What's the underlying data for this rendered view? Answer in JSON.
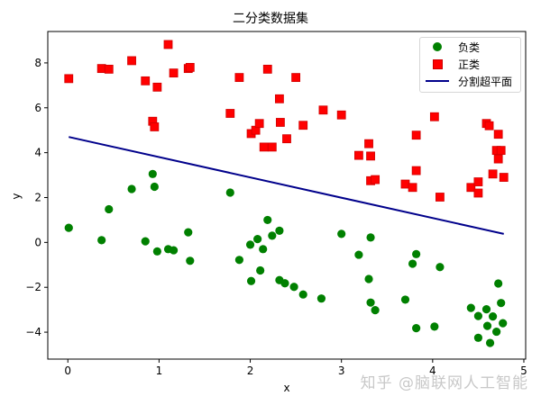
{
  "title": "二分类数据集",
  "watermark": "知乎 @脑联网人工智能",
  "legend": {
    "items": [
      {
        "label": "负类",
        "marker": "circle",
        "color": "#008000"
      },
      {
        "label": "正类",
        "marker": "square",
        "color": "#ff0000"
      },
      {
        "label": "分割超平面",
        "marker": "line",
        "color": "#00008b"
      }
    ]
  },
  "colors": {
    "negative": "#008000",
    "positive": "#ff0000",
    "hyperplane": "#00008b"
  },
  "chart_data": {
    "type": "scatter",
    "title": "二分类数据集",
    "xlabel": "x",
    "ylabel": "y",
    "xlim": [
      -0.22,
      5.02
    ],
    "ylim": [
      -5.2,
      9.4
    ],
    "xticks": [
      0,
      1,
      2,
      3,
      4,
      5
    ],
    "yticks": [
      -4,
      -2,
      0,
      2,
      4,
      6,
      8
    ],
    "grid": false,
    "legend_position": "upper right",
    "series": [
      {
        "name": "负类",
        "marker": "circle",
        "color": "#008000",
        "points": [
          [
            0.01,
            0.65
          ],
          [
            0.37,
            0.1
          ],
          [
            0.45,
            1.48
          ],
          [
            0.7,
            2.38
          ],
          [
            0.85,
            0.05
          ],
          [
            0.93,
            3.05
          ],
          [
            0.95,
            2.48
          ],
          [
            0.98,
            -0.4
          ],
          [
            1.1,
            -0.3
          ],
          [
            1.16,
            -0.35
          ],
          [
            1.32,
            0.45
          ],
          [
            1.34,
            -0.82
          ],
          [
            1.78,
            2.22
          ],
          [
            1.88,
            -0.78
          ],
          [
            2.0,
            -0.1
          ],
          [
            2.01,
            -1.72
          ],
          [
            2.08,
            0.15
          ],
          [
            2.11,
            -1.25
          ],
          [
            2.14,
            -0.3
          ],
          [
            2.19,
            1.0
          ],
          [
            2.24,
            0.3
          ],
          [
            2.32,
            0.52
          ],
          [
            2.32,
            -1.68
          ],
          [
            2.38,
            -1.82
          ],
          [
            2.48,
            -1.98
          ],
          [
            2.58,
            -2.32
          ],
          [
            2.78,
            -2.5
          ],
          [
            3.0,
            0.38
          ],
          [
            3.19,
            -0.55
          ],
          [
            3.3,
            -1.63
          ],
          [
            3.32,
            0.22
          ],
          [
            3.32,
            -2.68
          ],
          [
            3.37,
            -3.02
          ],
          [
            3.7,
            -2.55
          ],
          [
            3.78,
            -0.95
          ],
          [
            3.82,
            -3.82
          ],
          [
            3.82,
            -0.52
          ],
          [
            4.08,
            -1.1
          ],
          [
            4.02,
            -3.75
          ],
          [
            4.42,
            -2.92
          ],
          [
            4.5,
            -3.28
          ],
          [
            4.5,
            -4.25
          ],
          [
            4.59,
            -2.98
          ],
          [
            4.63,
            -4.48
          ],
          [
            4.66,
            -3.3
          ],
          [
            4.7,
            -3.98
          ],
          [
            4.72,
            -1.83
          ],
          [
            4.75,
            -2.7
          ],
          [
            4.77,
            -3.6
          ],
          [
            4.6,
            -3.72
          ]
        ]
      },
      {
        "name": "正类",
        "marker": "square",
        "color": "#ff0000",
        "points": [
          [
            0.01,
            7.3
          ],
          [
            0.37,
            7.75
          ],
          [
            0.45,
            7.72
          ],
          [
            0.7,
            8.1
          ],
          [
            0.85,
            7.2
          ],
          [
            0.98,
            6.92
          ],
          [
            1.1,
            8.82
          ],
          [
            1.16,
            7.55
          ],
          [
            1.32,
            7.75
          ],
          [
            1.34,
            7.8
          ],
          [
            0.93,
            5.4
          ],
          [
            0.95,
            5.15
          ],
          [
            1.78,
            5.75
          ],
          [
            1.88,
            7.35
          ],
          [
            2.01,
            4.85
          ],
          [
            2.06,
            5.0
          ],
          [
            2.1,
            5.3
          ],
          [
            2.15,
            4.25
          ],
          [
            2.19,
            7.72
          ],
          [
            2.24,
            4.25
          ],
          [
            2.32,
            6.4
          ],
          [
            2.33,
            5.35
          ],
          [
            2.4,
            4.62
          ],
          [
            2.5,
            7.35
          ],
          [
            2.58,
            5.22
          ],
          [
            2.8,
            5.9
          ],
          [
            3.0,
            5.68
          ],
          [
            3.19,
            3.88
          ],
          [
            3.3,
            4.4
          ],
          [
            3.32,
            3.85
          ],
          [
            3.32,
            2.75
          ],
          [
            3.37,
            2.8
          ],
          [
            3.7,
            2.6
          ],
          [
            3.78,
            2.45
          ],
          [
            3.82,
            4.78
          ],
          [
            3.82,
            3.2
          ],
          [
            4.02,
            5.6
          ],
          [
            4.08,
            2.02
          ],
          [
            4.42,
            2.45
          ],
          [
            4.5,
            2.7
          ],
          [
            4.5,
            2.2
          ],
          [
            4.59,
            5.3
          ],
          [
            4.62,
            5.2
          ],
          [
            4.66,
            3.05
          ],
          [
            4.7,
            4.1
          ],
          [
            4.72,
            4.82
          ],
          [
            4.75,
            4.1
          ],
          [
            4.72,
            3.72
          ],
          [
            4.78,
            2.9
          ]
        ]
      },
      {
        "name": "分割超平面",
        "marker": "line",
        "color": "#00008b",
        "points": [
          [
            0.01,
            4.7
          ],
          [
            4.78,
            0.38
          ]
        ]
      }
    ]
  }
}
